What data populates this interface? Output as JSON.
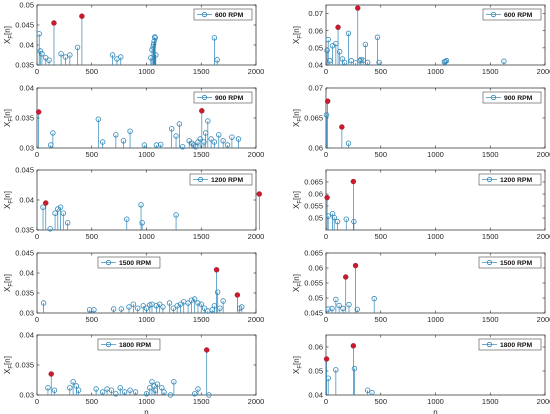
{
  "figure": {
    "background": "#ffffff",
    "stem_color": "#2e86b8",
    "highlight_color": "#cc1a2a"
  },
  "chart_data": [
    {
      "id": "L600",
      "type": "stem",
      "legend": "600 RPM",
      "legend_pos": "top-right",
      "ylabel_main": "X",
      "ylabel_sub": "F",
      "ylabel_tail": "[n]",
      "xlabel": "",
      "xlim": [
        0,
        2000
      ],
      "ylim": [
        0.035,
        0.05
      ],
      "yticks": [
        0.035,
        0.04,
        0.045,
        0.05
      ],
      "yticklabels": [
        "0.035",
        "0.04",
        "0.045",
        "0.05"
      ],
      "xticks": [
        0,
        500,
        1000,
        1500,
        2000
      ],
      "xticklabels": [
        "0",
        "500",
        "1000",
        "1500",
        "2000"
      ],
      "points": [
        [
          20,
          0.0428
        ],
        [
          30,
          0.0385
        ],
        [
          45,
          0.0378
        ],
        [
          80,
          0.0368
        ],
        [
          110,
          0.0362
        ],
        [
          155,
          0.0455
        ],
        [
          220,
          0.0378
        ],
        [
          260,
          0.037
        ],
        [
          300,
          0.0375
        ],
        [
          370,
          0.0394
        ],
        [
          410,
          0.0472
        ],
        [
          690,
          0.0375
        ],
        [
          730,
          0.0365
        ],
        [
          765,
          0.037
        ],
        [
          1040,
          0.0368
        ],
        [
          1050,
          0.0388
        ],
        [
          1060,
          0.0395
        ],
        [
          1065,
          0.0402
        ],
        [
          1070,
          0.041
        ],
        [
          1075,
          0.042
        ],
        [
          1080,
          0.0418
        ],
        [
          1085,
          0.0375
        ],
        [
          1620,
          0.0418
        ],
        [
          1645,
          0.0363
        ]
      ],
      "highlights": [
        [
          155,
          0.0455
        ],
        [
          410,
          0.0472
        ]
      ]
    },
    {
      "id": "R600",
      "type": "stem",
      "legend": "600 RPM",
      "legend_pos": "top-right",
      "ylabel_main": "X",
      "ylabel_sub": "F",
      "ylabel_tail": "[n]",
      "xlabel": "",
      "xlim": [
        0,
        2000
      ],
      "ylim": [
        0.04,
        0.075
      ],
      "yticks": [
        0.04,
        0.05,
        0.06,
        0.07
      ],
      "yticklabels": [
        "0.04",
        "0.05",
        "0.06",
        "0.07"
      ],
      "xticks": [
        0,
        500,
        1000,
        1500,
        2000
      ],
      "xticklabels": [
        "0",
        "500",
        "1000",
        "1500",
        "2000"
      ],
      "points": [
        [
          10,
          0.0485
        ],
        [
          20,
          0.0548
        ],
        [
          35,
          0.0425
        ],
        [
          60,
          0.0512
        ],
        [
          90,
          0.0525
        ],
        [
          110,
          0.062
        ],
        [
          125,
          0.0478
        ],
        [
          150,
          0.0435
        ],
        [
          170,
          0.0415
        ],
        [
          205,
          0.0585
        ],
        [
          230,
          0.0425
        ],
        [
          270,
          0.0412
        ],
        [
          290,
          0.0732
        ],
        [
          310,
          0.0425
        ],
        [
          320,
          0.0432
        ],
        [
          340,
          0.0428
        ],
        [
          360,
          0.052
        ],
        [
          380,
          0.0415
        ],
        [
          470,
          0.0562
        ],
        [
          485,
          0.0415
        ],
        [
          1080,
          0.0418
        ],
        [
          1090,
          0.042
        ],
        [
          1100,
          0.0425
        ],
        [
          1625,
          0.0422
        ]
      ],
      "highlights": [
        [
          110,
          0.062
        ],
        [
          290,
          0.0732
        ]
      ]
    },
    {
      "id": "L900",
      "type": "stem",
      "legend": "900 RPM",
      "legend_pos": "top-right",
      "ylabel_main": "X",
      "ylabel_sub": "F",
      "ylabel_tail": "[n]",
      "xlabel": "",
      "xlim": [
        0,
        2000
      ],
      "ylim": [
        0.03,
        0.04
      ],
      "yticks": [
        0.03,
        0.035,
        0.04
      ],
      "yticklabels": [
        "0.03",
        "0.035",
        "0.04"
      ],
      "xticks": [
        0,
        500,
        1000,
        1500,
        2000
      ],
      "xticklabels": [
        "0",
        "500",
        "1000",
        "1500",
        "2000"
      ],
      "points": [
        [
          15,
          0.036
        ],
        [
          125,
          0.0305
        ],
        [
          145,
          0.0325
        ],
        [
          560,
          0.0348
        ],
        [
          600,
          0.031
        ],
        [
          720,
          0.0322
        ],
        [
          790,
          0.0312
        ],
        [
          850,
          0.0328
        ],
        [
          980,
          0.0305
        ],
        [
          1090,
          0.0305
        ],
        [
          1130,
          0.0306
        ],
        [
          1230,
          0.0332
        ],
        [
          1270,
          0.032
        ],
        [
          1300,
          0.034
        ],
        [
          1330,
          0.0302
        ],
        [
          1390,
          0.0312
        ],
        [
          1415,
          0.0308
        ],
        [
          1430,
          0.0305
        ],
        [
          1450,
          0.0302
        ],
        [
          1470,
          0.031
        ],
        [
          1490,
          0.0315
        ],
        [
          1505,
          0.0362
        ],
        [
          1525,
          0.031
        ],
        [
          1540,
          0.0325
        ],
        [
          1560,
          0.0345
        ],
        [
          1590,
          0.0315
        ],
        [
          1620,
          0.031
        ],
        [
          1660,
          0.0322
        ],
        [
          1700,
          0.0312
        ],
        [
          1740,
          0.0305
        ],
        [
          1780,
          0.0318
        ],
        [
          1840,
          0.0315
        ]
      ],
      "highlights": [
        [
          15,
          0.036
        ],
        [
          1505,
          0.0362
        ]
      ]
    },
    {
      "id": "R900",
      "type": "stem",
      "legend": "900 RPM",
      "legend_pos": "top-right",
      "ylabel_main": "X",
      "ylabel_sub": "F",
      "ylabel_tail": "[n]",
      "xlabel": "",
      "xlim": [
        0,
        2000
      ],
      "ylim": [
        0.06,
        0.07
      ],
      "yticks": [
        0.06,
        0.065,
        0.07
      ],
      "yticklabels": [
        "0.06",
        "0.065",
        "0.07"
      ],
      "xticks": [
        0,
        500,
        1000,
        1500,
        2000
      ],
      "xticklabels": [
        "0",
        "500",
        "1000",
        "1500",
        "2000"
      ],
      "points": [
        [
          5,
          0.0655
        ],
        [
          15,
          0.0678
        ],
        [
          145,
          0.0635
        ],
        [
          205,
          0.0608
        ]
      ],
      "highlights": [
        [
          15,
          0.0678
        ],
        [
          145,
          0.0635
        ]
      ]
    },
    {
      "id": "L1200",
      "type": "stem",
      "legend": "1200 RPM",
      "legend_pos": "top-right",
      "ylabel_main": "X",
      "ylabel_sub": "F",
      "ylabel_tail": "[n]",
      "xlabel": "",
      "xlim": [
        0,
        2000
      ],
      "ylim": [
        0.035,
        0.045
      ],
      "yticks": [
        0.035,
        0.04,
        0.045
      ],
      "yticklabels": [
        "0.035",
        "0.04",
        "0.045"
      ],
      "xticks": [
        0,
        500,
        1000,
        1500,
        2000
      ],
      "xticklabels": [
        "0",
        "500",
        "1000",
        "1500",
        "2000"
      ],
      "points": [
        [
          55,
          0.0388
        ],
        [
          80,
          0.0395
        ],
        [
          120,
          0.0352
        ],
        [
          165,
          0.0378
        ],
        [
          190,
          0.0385
        ],
        [
          215,
          0.0388
        ],
        [
          240,
          0.0378
        ],
        [
          280,
          0.0362
        ],
        [
          820,
          0.0368
        ],
        [
          950,
          0.0392
        ],
        [
          960,
          0.0362
        ],
        [
          1270,
          0.0375
        ],
        [
          2030,
          0.041
        ]
      ],
      "highlights": [
        [
          80,
          0.0395
        ],
        [
          2030,
          0.041
        ]
      ]
    },
    {
      "id": "R1200",
      "type": "stem",
      "legend": "1200 RPM",
      "legend_pos": "top-right",
      "ylabel_main": "X",
      "ylabel_sub": "F",
      "ylabel_tail": "[n]",
      "xlabel": "",
      "xlim": [
        0,
        2000
      ],
      "ylim": [
        0.045,
        0.07
      ],
      "yticks": [
        0.05,
        0.055,
        0.06,
        0.065
      ],
      "yticklabels": [
        "0.05",
        "0.055",
        "0.06",
        "0.065"
      ],
      "xticks": [
        0,
        500,
        1000,
        1500,
        2000
      ],
      "xticklabels": [
        "0",
        "500",
        "1000",
        "1500",
        "2000"
      ],
      "points": [
        [
          10,
          0.0585
        ],
        [
          20,
          0.0508
        ],
        [
          60,
          0.0518
        ],
        [
          75,
          0.0502
        ],
        [
          105,
          0.0485
        ],
        [
          185,
          0.0495
        ],
        [
          250,
          0.0652
        ],
        [
          255,
          0.0485
        ]
      ],
      "highlights": [
        [
          10,
          0.0585
        ],
        [
          250,
          0.0652
        ]
      ]
    },
    {
      "id": "L1500",
      "type": "stem",
      "legend": "1500 RPM",
      "legend_pos": "top-center",
      "ylabel_main": "X",
      "ylabel_sub": "F",
      "ylabel_tail": "[n]",
      "xlabel": "",
      "xlim": [
        0,
        2000
      ],
      "ylim": [
        0.03,
        0.045
      ],
      "yticks": [
        0.03,
        0.035,
        0.04,
        0.045
      ],
      "yticklabels": [
        "0.03",
        "0.035",
        "0.04",
        "0.045"
      ],
      "xticks": [
        0,
        500,
        1000,
        1500,
        2000
      ],
      "xticklabels": [
        "0",
        "500",
        "1000",
        "1500",
        "2000"
      ],
      "points": [
        [
          60,
          0.0325
        ],
        [
          480,
          0.0308
        ],
        [
          520,
          0.0308
        ],
        [
          700,
          0.031
        ],
        [
          770,
          0.031
        ],
        [
          840,
          0.0315
        ],
        [
          880,
          0.0322
        ],
        [
          920,
          0.0312
        ],
        [
          970,
          0.0318
        ],
        [
          1000,
          0.0312
        ],
        [
          1030,
          0.032
        ],
        [
          1050,
          0.0322
        ],
        [
          1090,
          0.0318
        ],
        [
          1120,
          0.0322
        ],
        [
          1150,
          0.0315
        ],
        [
          1210,
          0.0325
        ],
        [
          1245,
          0.0312
        ],
        [
          1280,
          0.0318
        ],
        [
          1310,
          0.0322
        ],
        [
          1340,
          0.0328
        ],
        [
          1380,
          0.0325
        ],
        [
          1410,
          0.0332
        ],
        [
          1440,
          0.0335
        ],
        [
          1470,
          0.0325
        ],
        [
          1500,
          0.0322
        ],
        [
          1530,
          0.0312
        ],
        [
          1560,
          0.0305
        ],
        [
          1600,
          0.0308
        ],
        [
          1620,
          0.0318
        ],
        [
          1640,
          0.0408
        ],
        [
          1650,
          0.0352
        ],
        [
          1670,
          0.0312
        ],
        [
          1700,
          0.033
        ],
        [
          1830,
          0.0345
        ],
        [
          1850,
          0.0312
        ],
        [
          1870,
          0.0315
        ]
      ],
      "highlights": [
        [
          1640,
          0.0408
        ],
        [
          1830,
          0.0345
        ]
      ]
    },
    {
      "id": "R1500",
      "type": "stem",
      "legend": "1500 RPM",
      "legend_pos": "top-right",
      "ylabel_main": "X",
      "ylabel_sub": "F",
      "ylabel_tail": "[n]",
      "xlabel": "",
      "xlim": [
        0,
        2000
      ],
      "ylim": [
        0.045,
        0.065
      ],
      "yticks": [
        0.045,
        0.05,
        0.055,
        0.06,
        0.065
      ],
      "yticklabels": [
        "0.045",
        "0.05",
        "0.055",
        "0.06",
        "0.065"
      ],
      "xticks": [
        0,
        500,
        1000,
        1500,
        2000
      ],
      "xticklabels": [
        "0",
        "500",
        "1000",
        "1500",
        "2000"
      ],
      "points": [
        [
          20,
          0.0463
        ],
        [
          55,
          0.0465
        ],
        [
          90,
          0.0495
        ],
        [
          120,
          0.0475
        ],
        [
          155,
          0.0465
        ],
        [
          180,
          0.057
        ],
        [
          210,
          0.0478
        ],
        [
          270,
          0.0608
        ],
        [
          285,
          0.0462
        ],
        [
          440,
          0.0498
        ]
      ],
      "highlights": [
        [
          180,
          0.057
        ],
        [
          270,
          0.0608
        ]
      ]
    },
    {
      "id": "L1800",
      "type": "stem",
      "legend": "1800 RPM",
      "legend_pos": "top-center",
      "ylabel_main": "X",
      "ylabel_sub": "F",
      "ylabel_tail": "[n]",
      "xlabel": "n",
      "xlim": [
        0,
        2000
      ],
      "ylim": [
        0.03,
        0.04
      ],
      "yticks": [
        0.03,
        0.035,
        0.04
      ],
      "yticklabels": [
        "0.03",
        "0.035",
        "0.04"
      ],
      "xticks": [
        0,
        500,
        1000,
        1500,
        2000
      ],
      "xticklabels": [
        "0",
        "500",
        "1000",
        "1500",
        "2000"
      ],
      "points": [
        [
          100,
          0.0312
        ],
        [
          130,
          0.0335
        ],
        [
          160,
          0.0308
        ],
        [
          300,
          0.0312
        ],
        [
          330,
          0.0322
        ],
        [
          360,
          0.0315
        ],
        [
          380,
          0.0308
        ],
        [
          540,
          0.031
        ],
        [
          600,
          0.0305
        ],
        [
          640,
          0.031
        ],
        [
          680,
          0.0308
        ],
        [
          720,
          0.0302
        ],
        [
          760,
          0.0312
        ],
        [
          800,
          0.0305
        ],
        [
          850,
          0.0308
        ],
        [
          900,
          0.0305
        ],
        [
          1000,
          0.0302
        ],
        [
          1030,
          0.0312
        ],
        [
          1050,
          0.0322
        ],
        [
          1070,
          0.0315
        ],
        [
          1080,
          0.0308
        ],
        [
          1100,
          0.0318
        ],
        [
          1140,
          0.0312
        ],
        [
          1160,
          0.0305
        ],
        [
          1220,
          0.0298
        ],
        [
          1250,
          0.0322
        ],
        [
          1440,
          0.0302
        ],
        [
          1470,
          0.031
        ],
        [
          1550,
          0.0375
        ],
        [
          1570,
          0.0298
        ]
      ],
      "highlights": [
        [
          130,
          0.0335
        ],
        [
          1550,
          0.0375
        ]
      ]
    },
    {
      "id": "R1800",
      "type": "stem",
      "legend": "1800 RPM",
      "legend_pos": "top-right",
      "ylabel_main": "X",
      "ylabel_sub": "F",
      "ylabel_tail": "[n]",
      "xlabel": "n",
      "xlim": [
        0,
        2000
      ],
      "ylim": [
        0.04,
        0.065
      ],
      "yticks": [
        0.04,
        0.05,
        0.06
      ],
      "yticklabels": [
        "0.04",
        "0.05",
        "0.06"
      ],
      "xticks": [
        0,
        500,
        1000,
        1500,
        2000
      ],
      "xticklabels": [
        "0",
        "500",
        "1000",
        "1500",
        "2000"
      ],
      "points": [
        [
          5,
          0.055
        ],
        [
          20,
          0.047
        ],
        [
          90,
          0.0505
        ],
        [
          250,
          0.0605
        ],
        [
          260,
          0.051
        ],
        [
          380,
          0.042
        ],
        [
          420,
          0.041
        ]
      ],
      "highlights": [
        [
          5,
          0.055
        ],
        [
          250,
          0.0605
        ]
      ]
    }
  ]
}
